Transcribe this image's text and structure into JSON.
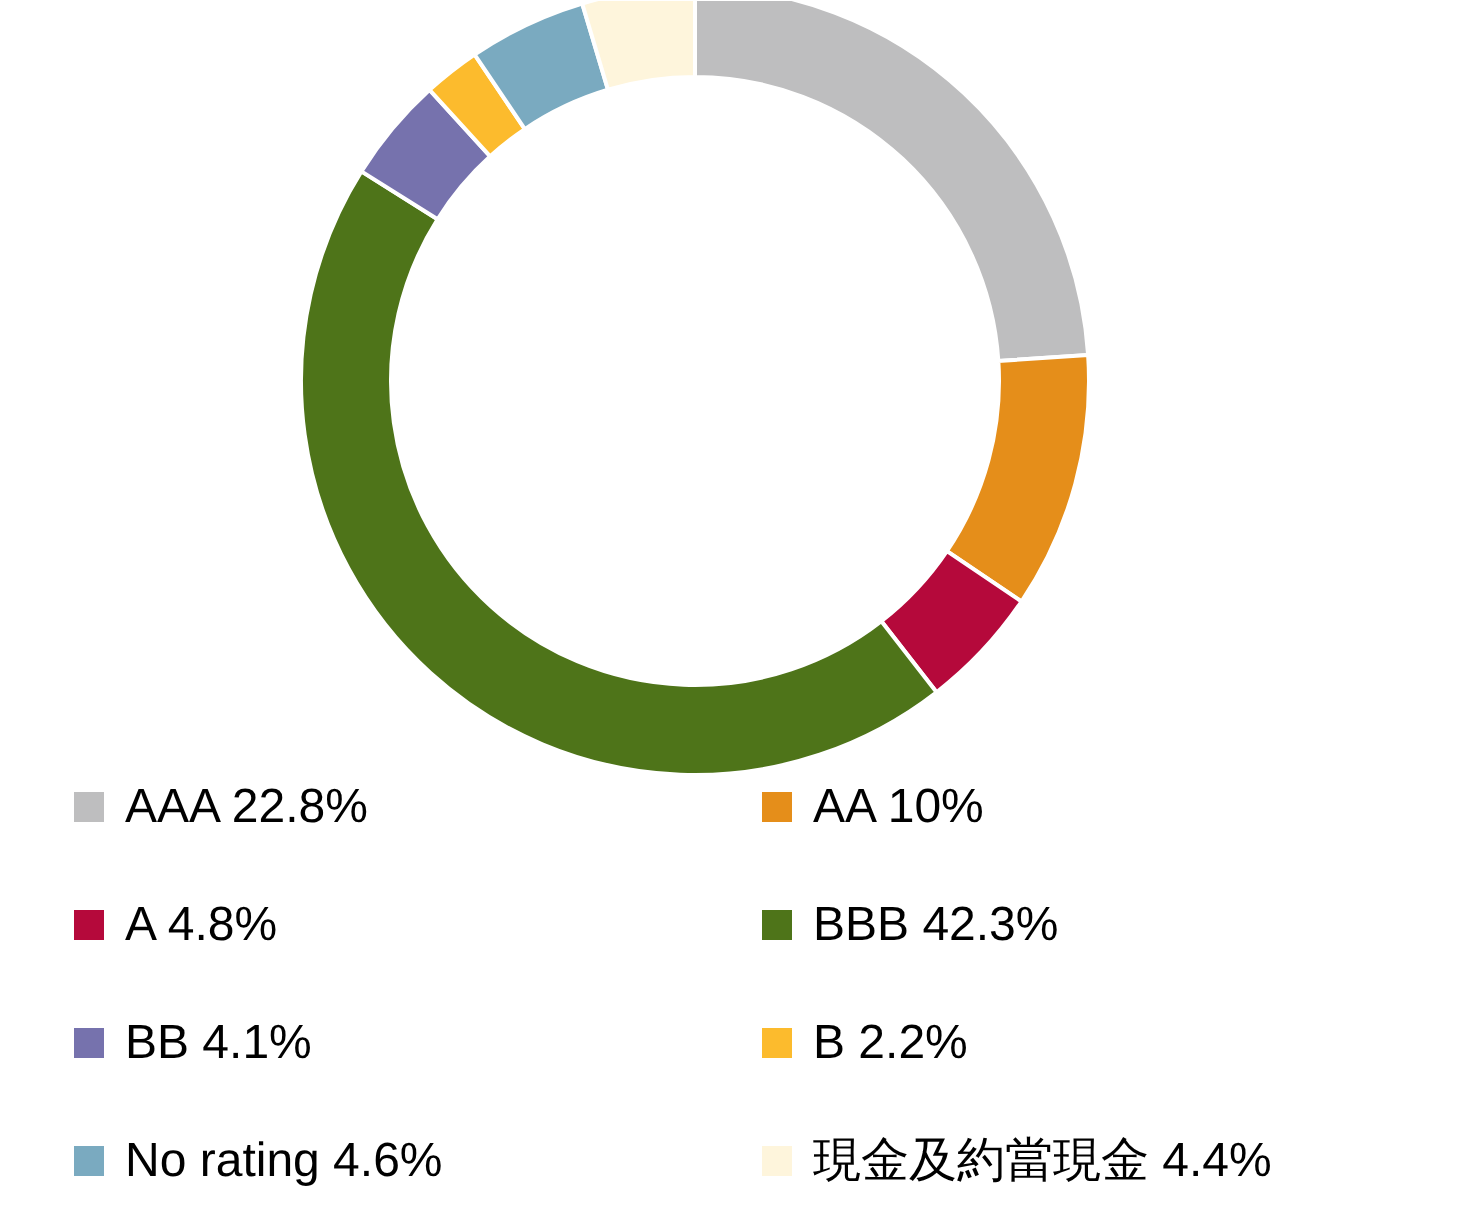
{
  "chart_data": {
    "type": "donut",
    "categories": [
      "AAA 22.8%",
      "AA 10%",
      "A 4.8%",
      "BBB 42.3%",
      "BB 4.1%",
      "B 2.2%",
      "No rating 4.6%",
      "現金及約當現金 4.4%"
    ],
    "values": [
      22.8,
      10,
      4.8,
      42.3,
      4.1,
      2.2,
      4.6,
      4.4
    ],
    "colors": [
      "#bebebf",
      "#e58e1a",
      "#b5093b",
      "#4e7419",
      "#7672ad",
      "#fcbb2d",
      "#7aaac0",
      "#fef5dc"
    ],
    "legend": "bottom"
  }
}
